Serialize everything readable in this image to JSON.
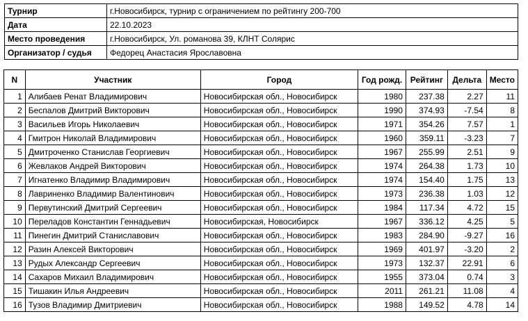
{
  "info": [
    {
      "label": "Турнир",
      "value": "г.Новосибирск, турнир с ограничением по рейтингу 200-700"
    },
    {
      "label": "Дата",
      "value": "22.10.2023"
    },
    {
      "label": "Место проведения",
      "value": "г.Новосибирск, Ул. романова 39, КЛНТ Солярис"
    },
    {
      "label": "Организатор / судья",
      "value": "Федорец Анастасия Ярославовна"
    }
  ],
  "columns": [
    "N",
    "Участник",
    "Город",
    "Год рожд.",
    "Рейтинг",
    "Дельта",
    "Место"
  ],
  "rows": [
    [
      "1",
      "Алибаев Ренат Владимирович",
      "Новосибирская обл., Новосибирск",
      "1980",
      "237.38",
      "2.27",
      "11"
    ],
    [
      "2",
      "Беспалов Дмитрий Викторович",
      "Новосибирская обл., Новосибирск",
      "1990",
      "374.93",
      "-7.54",
      "8"
    ],
    [
      "3",
      "Васильев Игорь Николаевич",
      "Новосибирская обл., Новосибирск",
      "1971",
      "354.26",
      "7.57",
      "1"
    ],
    [
      "4",
      "Гмитрон Николай Владимирович",
      "Новосибирская обл., Новосибирск",
      "1960",
      "359.11",
      "-3.23",
      "7"
    ],
    [
      "5",
      "Дмитроченко Станислав Георгиевич",
      "Новосибирская обл., Новосибирск",
      "1967",
      "255.99",
      "2.51",
      "9"
    ],
    [
      "6",
      "Жевлаков Андрей Викторович",
      "Новосибирская обл., Новосибирск",
      "1974",
      "264.38",
      "1.73",
      "10"
    ],
    [
      "7",
      "Игнатенко Владимир Владимирович",
      "Новосибирская обл., Новосибирск",
      "1974",
      "154.40",
      "1.75",
      "13"
    ],
    [
      "8",
      "Лавриненко Владимир Валентинович",
      "Новосибирская обл., Новосибирск",
      "1973",
      "236.38",
      "1.03",
      "12"
    ],
    [
      "9",
      "Первутинский Дмитрий Сергеевич",
      "Новосибирская обл., Новосибирск",
      "1984",
      "117.34",
      "4.72",
      "15"
    ],
    [
      "10",
      "Переладов Константин Геннадьевич",
      "Новосибирская, Новосибирск",
      "1967",
      "336.12",
      "4.25",
      "5"
    ],
    [
      "11",
      "Пинегин Дмитрий Станиславович",
      "Новосибирская обл., Новосибирск",
      "1983",
      "284.90",
      "-9.27",
      "16"
    ],
    [
      "12",
      "Разин Алексей Викторович",
      "Новосибирская обл., Новосибирск",
      "1969",
      "401.97",
      "-3.20",
      "2"
    ],
    [
      "13",
      "Рудых Александр Сергеевич",
      "Новосибирская обл., Новосибирск",
      "1973",
      "132.37",
      "22.91",
      "6"
    ],
    [
      "14",
      "Сахаров Михаил Владимирович",
      "Новосибирская обл., Новосибирск",
      "1955",
      "373.04",
      "0.74",
      "3"
    ],
    [
      "15",
      "Тишакин Илья Андреевич",
      "Новосибирская обл., Новосибирск",
      "2011",
      "261.21",
      "11.08",
      "4"
    ],
    [
      "16",
      "Тузов Владимир Дмитриевич",
      "Новосибирская обл., Новосибирск",
      "1988",
      "149.52",
      "4.78",
      "14"
    ]
  ]
}
